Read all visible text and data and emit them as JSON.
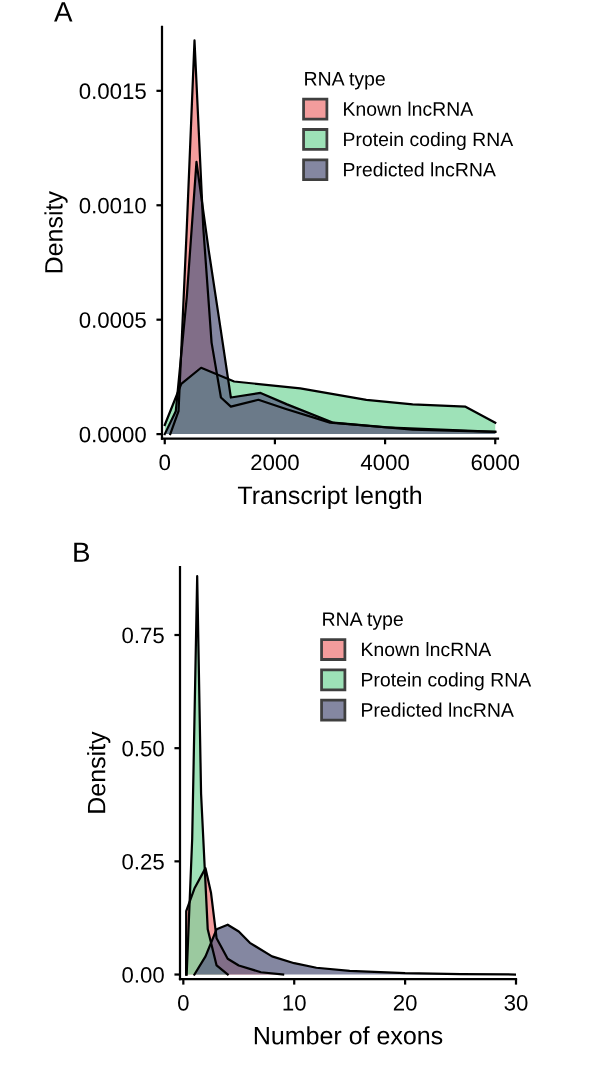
{
  "chart_data": [
    {
      "type": "area",
      "title": "A",
      "xlabel": "Transcript length",
      "ylabel": "Density",
      "legend_title": "RNA type",
      "legend": "top right",
      "grid": false,
      "xlim": [
        -50,
        6050
      ],
      "ylim": [
        -2e-05,
        0.00178
      ],
      "xticks": [
        0,
        2000,
        4000,
        6000
      ],
      "yticks": [
        {
          "value": 0,
          "label": "0.0000"
        },
        {
          "value": 0.0005,
          "label": "0.0005"
        },
        {
          "value": 0.001,
          "label": "0.0010"
        },
        {
          "value": 0.0015,
          "label": "0.0015"
        }
      ],
      "series": [
        {
          "name": "Known lncRNA",
          "color": "#f07c7c",
          "x": [
            100,
            250,
            400,
            540,
            700,
            850,
            1020,
            1200,
            1700,
            2200,
            3000,
            4000,
            6000
          ],
          "values": [
            0,
            0.0001,
            0.0009,
            0.00172,
            0.0009,
            0.0004,
            0.00016,
            0.00012,
            0.00015,
            0.00011,
            5e-05,
            3e-05,
            1e-05
          ]
        },
        {
          "name": "Protein coding RNA",
          "color": "#7dd8a0",
          "x": [
            0,
            300,
            660,
            1260,
            2460,
            3660,
            4500,
            5460,
            6000
          ],
          "values": [
            4e-05,
            0.00022,
            0.00029,
            0.00023,
            0.0002,
            0.00015,
            0.00013,
            0.00012,
            5e-05
          ]
        },
        {
          "name": "Predicted lncRNA",
          "color": "#5b5f82",
          "x": [
            0,
            200,
            400,
            576,
            800,
            1020,
            1200,
            1740,
            2220,
            3060,
            4500,
            6000
          ],
          "values": [
            0,
            0.0001,
            0.0006,
            0.00119,
            0.0008,
            0.00045,
            0.00016,
            0.00018,
            0.00013,
            5e-05,
            2e-05,
            1e-05
          ]
        }
      ]
    },
    {
      "type": "area",
      "title": "B",
      "xlabel": "Number of exons",
      "ylabel": "Density",
      "legend_title": "RNA type",
      "legend": "top right",
      "grid": false,
      "xlim": [
        -0.3,
        30
      ],
      "ylim": [
        -0.01,
        0.9
      ],
      "xticks": [
        0,
        10,
        20,
        30
      ],
      "yticks": [
        {
          "value": 0,
          "label": "0.00"
        },
        {
          "value": 0.25,
          "label": "0.25"
        },
        {
          "value": 0.5,
          "label": "0.50"
        },
        {
          "value": 0.75,
          "label": "0.75"
        }
      ],
      "series": [
        {
          "name": "Known lncRNA",
          "color": "#f07c7c",
          "x": [
            0.25,
            0.26,
            1,
            2,
            2.5,
            3,
            4,
            5,
            7,
            9
          ],
          "values": [
            0,
            0.14,
            0.19,
            0.235,
            0.18,
            0.08,
            0.035,
            0.02,
            0.005,
            0
          ]
        },
        {
          "name": "Protein coding RNA",
          "color": "#7dd8a0",
          "x": [
            0.3,
            0.8,
            1.25,
            1.6,
            2.2,
            3,
            4
          ],
          "values": [
            0,
            0.3,
            0.88,
            0.4,
            0.1,
            0.02,
            0
          ]
        },
        {
          "name": "Predicted lncRNA",
          "color": "#5b5f82",
          "x": [
            1,
            2,
            3,
            4,
            5,
            6,
            8,
            10,
            12,
            15,
            20,
            25,
            30
          ],
          "values": [
            0,
            0.04,
            0.1,
            0.11,
            0.095,
            0.07,
            0.04,
            0.025,
            0.015,
            0.008,
            0.003,
            0.001,
            0
          ]
        }
      ]
    }
  ]
}
